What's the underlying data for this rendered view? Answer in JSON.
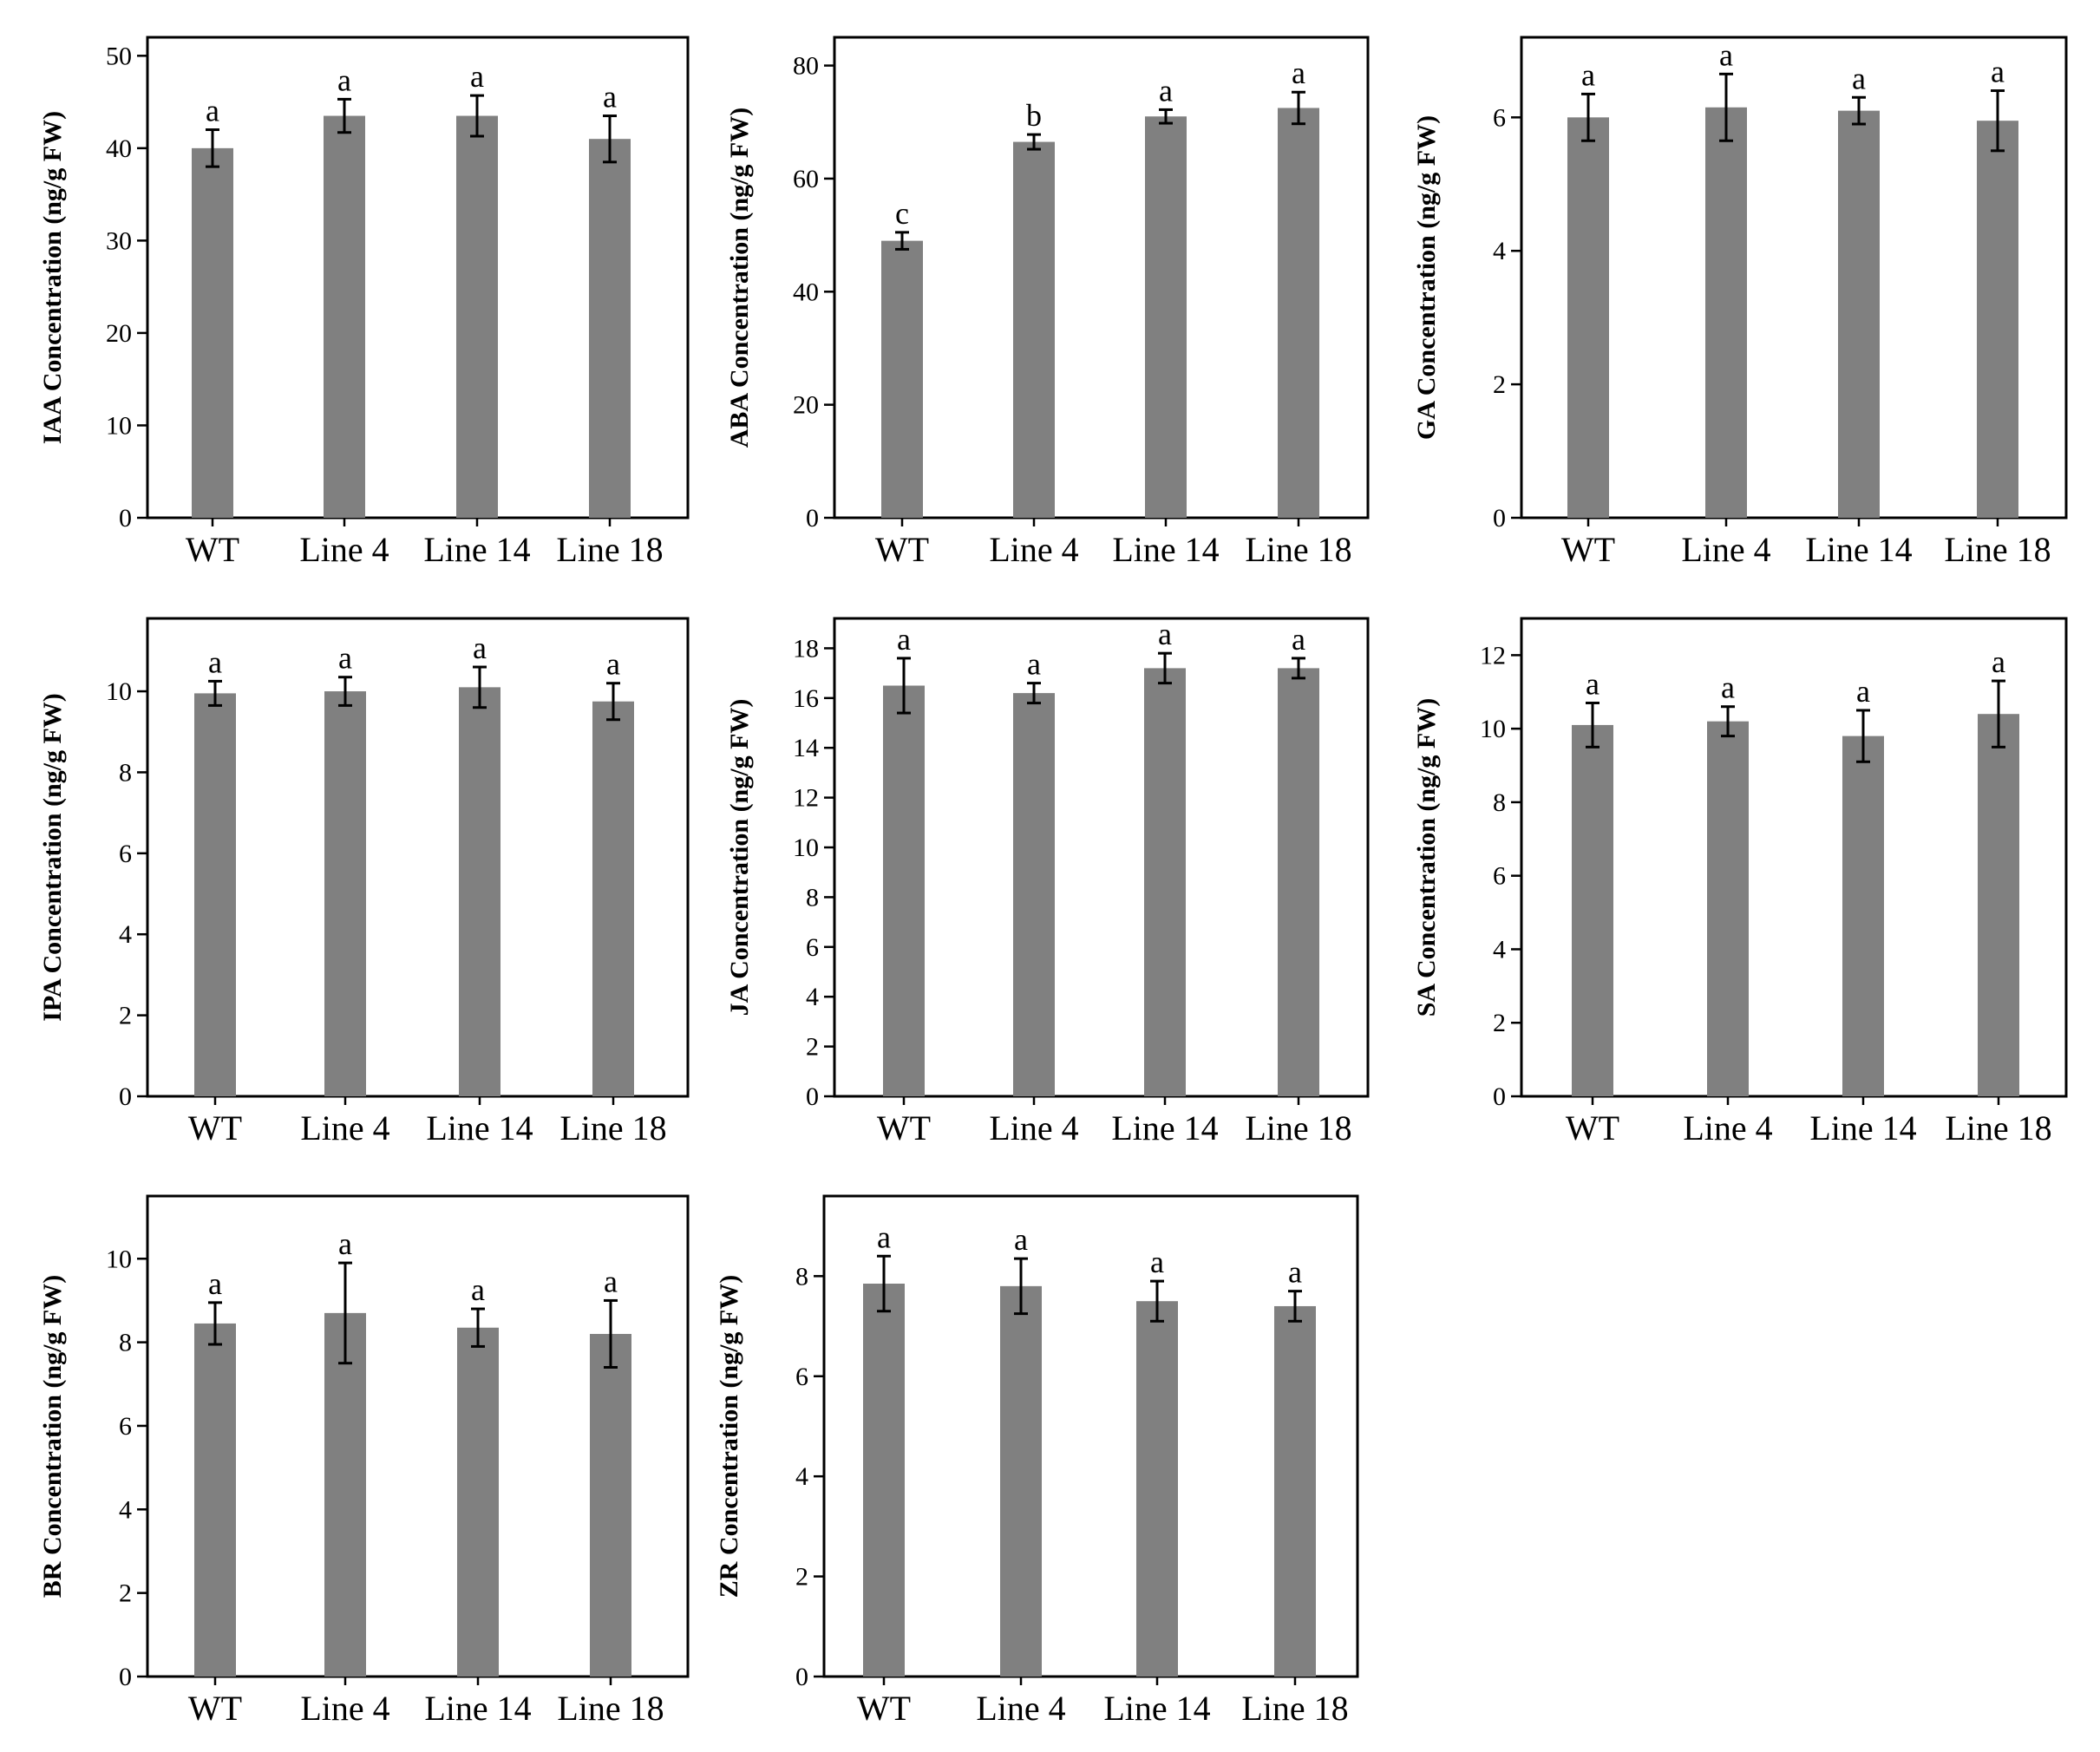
{
  "chart_data": [
    {
      "type": "bar",
      "ylabel": "IAA Concentration (ng/g FW)",
      "categories": [
        "WT",
        "Line 4",
        "Line 14",
        "Line 18"
      ],
      "values": [
        40.0,
        43.5,
        43.5,
        41.0
      ],
      "errors": [
        2.0,
        1.8,
        2.2,
        2.5
      ],
      "letters": [
        "a",
        "a",
        "a",
        "a"
      ],
      "ylim": [
        0,
        52
      ],
      "yticks": [
        0,
        10,
        20,
        30,
        40,
        50
      ],
      "color": "#808080"
    },
    {
      "type": "bar",
      "ylabel": "ABA Concentration (ng/g FW)",
      "categories": [
        "WT",
        "Line 4",
        "Line 14",
        "Line 18"
      ],
      "values": [
        49.0,
        66.5,
        71.0,
        72.5
      ],
      "errors": [
        1.5,
        1.3,
        1.2,
        2.8
      ],
      "letters": [
        "c",
        "b",
        "a",
        "a"
      ],
      "ylim": [
        0,
        85
      ],
      "yticks": [
        0,
        20,
        40,
        60,
        80
      ],
      "color": "#808080"
    },
    {
      "type": "bar",
      "ylabel": "GA Concentration (ng/g FW)",
      "categories": [
        "WT",
        "Line 4",
        "Line 14",
        "Line 18"
      ],
      "values": [
        6.0,
        6.15,
        6.1,
        5.95
      ],
      "errors": [
        0.35,
        0.5,
        0.2,
        0.45
      ],
      "letters": [
        "a",
        "a",
        "a",
        "a"
      ],
      "ylim": [
        0,
        7.2
      ],
      "yticks": [
        0,
        2,
        4,
        6
      ],
      "color": "#808080"
    },
    {
      "type": "bar",
      "ylabel": "IPA Concentration (ng/g FW)",
      "categories": [
        "WT",
        "Line 4",
        "Line 14",
        "Line 18"
      ],
      "values": [
        9.95,
        10.0,
        10.1,
        9.75
      ],
      "errors": [
        0.3,
        0.35,
        0.5,
        0.45
      ],
      "letters": [
        "a",
        "a",
        "a",
        "a"
      ],
      "ylim": [
        0,
        11.8
      ],
      "yticks": [
        0,
        2,
        4,
        6,
        8,
        10
      ],
      "color": "#808080"
    },
    {
      "type": "bar",
      "ylabel": "JA Concentration (ng/g FW)",
      "categories": [
        "WT",
        "Line 4",
        "Line 14",
        "Line 18"
      ],
      "values": [
        16.5,
        16.2,
        17.2,
        17.2
      ],
      "errors": [
        1.1,
        0.4,
        0.6,
        0.4
      ],
      "letters": [
        "a",
        "a",
        "a",
        "a"
      ],
      "ylim": [
        0,
        19.2
      ],
      "yticks": [
        0,
        2,
        4,
        6,
        8,
        10,
        12,
        14,
        16,
        18
      ],
      "color": "#808080"
    },
    {
      "type": "bar",
      "ylabel": "SA Concentration (ng/g FW)",
      "categories": [
        "WT",
        "Line 4",
        "Line 14",
        "Line 18"
      ],
      "values": [
        10.1,
        10.2,
        9.8,
        10.4
      ],
      "errors": [
        0.6,
        0.4,
        0.7,
        0.9
      ],
      "letters": [
        "a",
        "a",
        "a",
        "a"
      ],
      "ylim": [
        0,
        13
      ],
      "yticks": [
        0,
        2,
        4,
        6,
        8,
        10,
        12
      ],
      "color": "#808080"
    },
    {
      "type": "bar",
      "ylabel": "BR Concentration (ng/g FW)",
      "categories": [
        "WT",
        "Line 4",
        "Line 14",
        "Line 18"
      ],
      "values": [
        8.45,
        8.7,
        8.35,
        8.2
      ],
      "errors": [
        0.5,
        1.2,
        0.45,
        0.8
      ],
      "letters": [
        "a",
        "a",
        "a",
        "a"
      ],
      "ylim": [
        0,
        11.5
      ],
      "yticks": [
        0,
        2,
        4,
        6,
        8,
        10
      ],
      "color": "#808080"
    },
    {
      "type": "bar",
      "ylabel": "ZR Concentration (ng/g FW)",
      "categories": [
        "WT",
        "Line 4",
        "Line 14",
        "Line 18"
      ],
      "values": [
        7.85,
        7.8,
        7.5,
        7.4
      ],
      "errors": [
        0.55,
        0.55,
        0.4,
        0.3
      ],
      "letters": [
        "a",
        "a",
        "a",
        "a"
      ],
      "ylim": [
        0,
        9.6
      ],
      "yticks": [
        0,
        2,
        4,
        6,
        8
      ],
      "color": "#808080"
    }
  ]
}
